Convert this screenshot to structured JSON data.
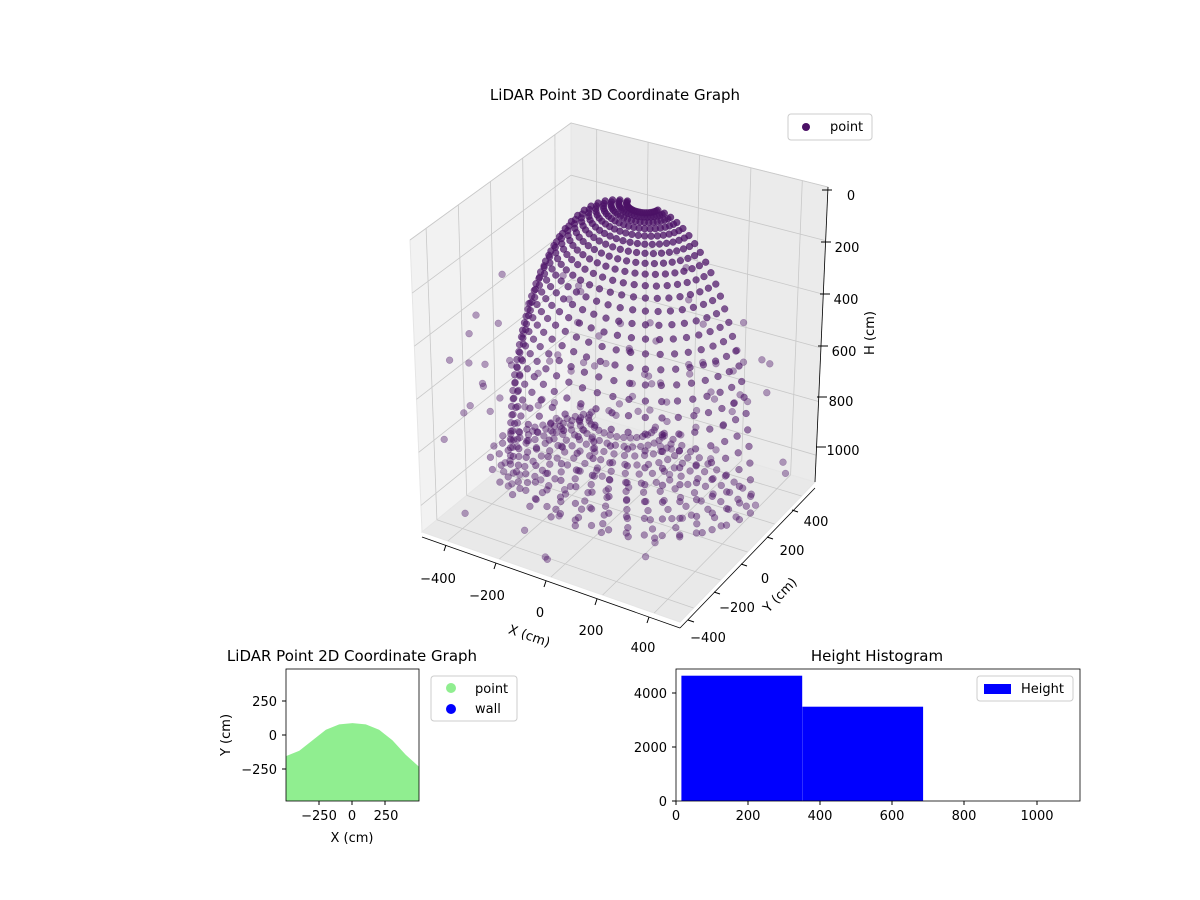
{
  "colors": {
    "scatter3d": "#4b1166",
    "pane": "#f2f2f2",
    "grid": "#c8c8c8",
    "point2d": "#90ee90",
    "wall2d": "#0000ff",
    "hist": "#0000ff"
  },
  "chart_data": [
    {
      "type": "scatter",
      "projection": "3d",
      "title": "LiDAR Point 3D Coordinate Graph",
      "xlabel": "X (cm)",
      "ylabel": "Y (cm)",
      "zlabel": "H (cm)",
      "xticks": [
        "−400",
        "−200",
        "0",
        "200",
        "400"
      ],
      "yticks": [
        "−400",
        "−200",
        "0",
        "200",
        "400"
      ],
      "zticks": [
        "0",
        "200",
        "400",
        "600",
        "800",
        "1000"
      ],
      "xlim": [
        -500,
        500
      ],
      "ylim": [
        -500,
        500
      ],
      "zlim": [
        0,
        1100
      ],
      "z_inverted": true,
      "legend": [
        "point"
      ],
      "legend_position": "top-right",
      "grid": true,
      "series": [
        {
          "name": "point",
          "note_shape": "dome of points over walls",
          "points": [
            {
              "x": -420,
              "y": 100,
              "z": 150
            },
            {
              "x": -380,
              "y": 0,
              "z": 100
            },
            {
              "x": -300,
              "y": -100,
              "z": 60
            },
            {
              "x": -200,
              "y": -200,
              "z": 40
            },
            {
              "x": -100,
              "y": 0,
              "z": 20
            },
            {
              "x": 0,
              "y": 100,
              "z": 10
            },
            {
              "x": 100,
              "y": 0,
              "z": 20
            },
            {
              "x": 200,
              "y": -100,
              "z": 50
            },
            {
              "x": 300,
              "y": 100,
              "z": 120
            },
            {
              "x": 350,
              "y": 200,
              "z": 200
            },
            {
              "x": -450,
              "y": -300,
              "z": 600
            },
            {
              "x": -350,
              "y": -350,
              "z": 800
            },
            {
              "x": -200,
              "y": -400,
              "z": 950
            },
            {
              "x": 0,
              "y": -400,
              "z": 1000
            },
            {
              "x": 200,
              "y": -300,
              "z": 900
            },
            {
              "x": 350,
              "y": -200,
              "z": 800
            },
            {
              "x": 400,
              "y": 0,
              "z": 700
            }
          ]
        }
      ]
    },
    {
      "type": "scatter",
      "title": "LiDAR Point 2D Coordinate Graph",
      "xlabel": "X (cm)",
      "ylabel": "Y (cm)",
      "xticks": [
        "−250",
        "0",
        "250"
      ],
      "yticks": [
        "250",
        "0",
        "−250"
      ],
      "xlim": [
        -500,
        500
      ],
      "ylim": [
        -500,
        500
      ],
      "legend": [
        "point",
        "wall"
      ],
      "legend_position": "outside-right",
      "series": [
        {
          "name": "point",
          "note": "filled region, upper boundary",
          "boundary": [
            {
              "x": -500,
              "y": -160
            },
            {
              "x": -400,
              "y": -120
            },
            {
              "x": -300,
              "y": -40
            },
            {
              "x": -200,
              "y": 40
            },
            {
              "x": -100,
              "y": 80
            },
            {
              "x": 0,
              "y": 90
            },
            {
              "x": 100,
              "y": 80
            },
            {
              "x": 200,
              "y": 40
            },
            {
              "x": 300,
              "y": -40
            },
            {
              "x": 400,
              "y": -150
            },
            {
              "x": 500,
              "y": -240
            }
          ]
        },
        {
          "name": "wall",
          "points": []
        }
      ]
    },
    {
      "type": "bar",
      "title": "Height Histogram",
      "xticks": [
        "0",
        "200",
        "400",
        "600",
        "800",
        "1000"
      ],
      "yticks": [
        "0",
        "2000",
        "4000"
      ],
      "xlim": [
        0,
        1120
      ],
      "ylim": [
        0,
        4900
      ],
      "legend": [
        "Height"
      ],
      "legend_position": "top-right",
      "bins": [
        {
          "start": 15,
          "end": 350,
          "count": 4650
        },
        {
          "start": 350,
          "end": 685,
          "count": 3500
        }
      ]
    }
  ]
}
